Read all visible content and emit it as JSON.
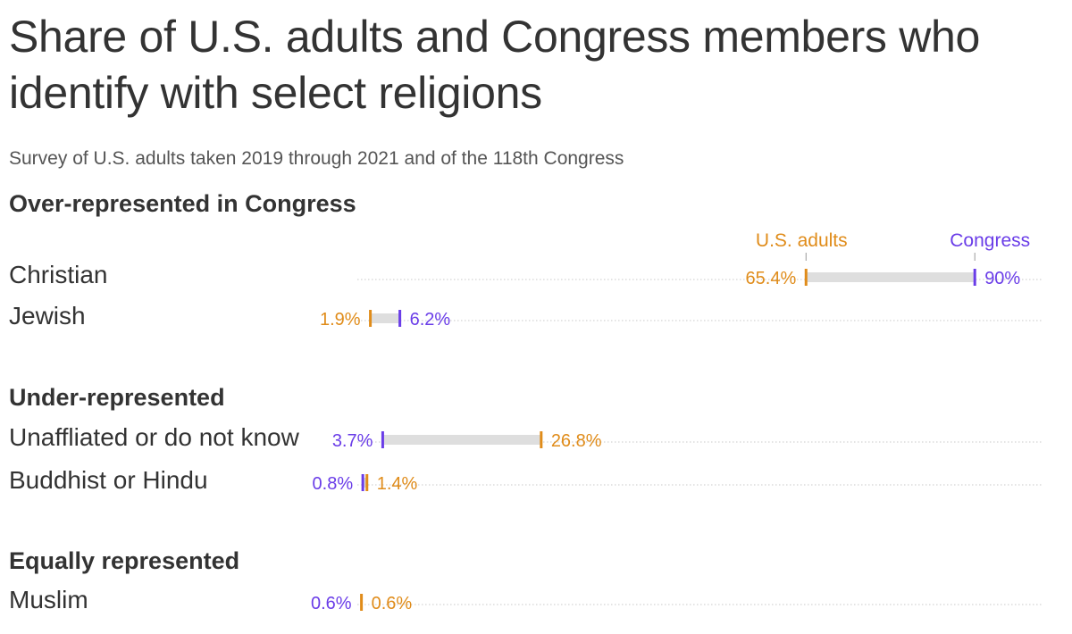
{
  "title": "Share of U.S. adults and Congress members who identify with select religions",
  "subtitle": "Survey of U.S. adults taken 2019 through 2021 and of the 118th Congress",
  "colors": {
    "us_adults": "#e08c1a",
    "congress": "#6a3de8",
    "range_bar": "#dedede",
    "dotted_line": "#c8c8c8"
  },
  "groups": [
    {
      "heading": "Over-represented in Congress"
    },
    {
      "heading": "Under-represented"
    },
    {
      "heading": "Equally represented"
    }
  ],
  "chart_data": {
    "type": "dumbbell",
    "title": "Share of U.S. adults and Congress members who identify with select religions",
    "subtitle": "Survey of U.S. adults taken 2019 through 2021 and of the 118th Congress",
    "series": [
      {
        "name": "U.S. adults",
        "key": "us_adults"
      },
      {
        "name": "Congress",
        "key": "congress"
      }
    ],
    "xlim": [
      0,
      100
    ],
    "unit": "%",
    "rows": [
      {
        "label": "Christian",
        "group": 0,
        "us_adults": 65.4,
        "congress": 90,
        "us_adults_label": "65.4%",
        "congress_label": "90%"
      },
      {
        "label": "Jewish",
        "group": 0,
        "us_adults": 1.9,
        "congress": 6.2,
        "us_adults_label": "1.9%",
        "congress_label": "6.2%"
      },
      {
        "label": "Unaffliated or do not know",
        "group": 1,
        "us_adults": 26.8,
        "congress": 3.7,
        "us_adults_label": "26.8%",
        "congress_label": "3.7%"
      },
      {
        "label": "Buddhist or Hindu",
        "group": 1,
        "us_adults": 1.4,
        "congress": 0.8,
        "us_adults_label": "1.4%",
        "congress_label": "0.8%"
      },
      {
        "label": "Muslim",
        "group": 2,
        "us_adults": 0.6,
        "congress": 0.6,
        "us_adults_label": "0.6%",
        "congress_label": "0.6%"
      }
    ]
  }
}
